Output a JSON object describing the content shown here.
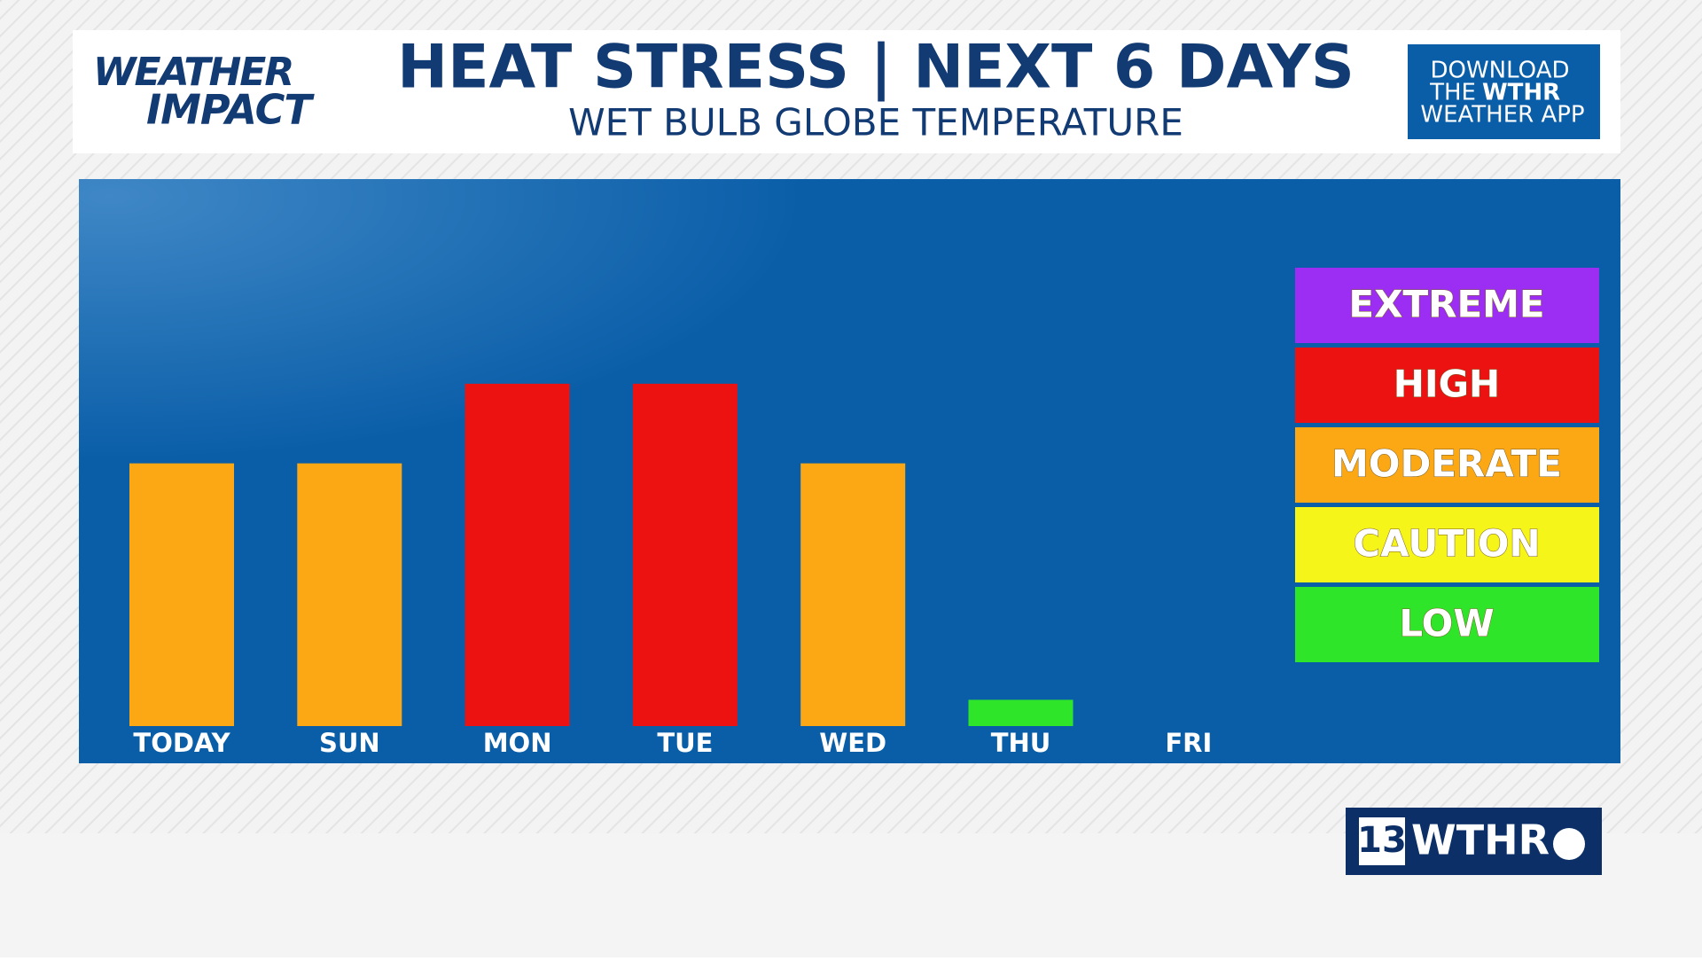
{
  "chart_data": {
    "type": "bar",
    "title": "HEAT STRESS | NEXT 6 DAYS",
    "subtitle": "WET BULB GLOBE TEMPERATURE",
    "categories": [
      "TODAY",
      "SUN",
      "MON",
      "TUE",
      "WED",
      "THU",
      "FRI"
    ],
    "values": [
      3.3,
      3.3,
      4.3,
      4.3,
      3.3,
      0.33,
      0
    ],
    "colors": [
      "#fca814",
      "#fca814",
      "#ec1212",
      "#ec1212",
      "#fca814",
      "#2ee52a",
      "#2ee52a"
    ],
    "ylim": [
      0,
      5
    ],
    "legend": [
      {
        "name": "EXTREME",
        "color": "#9b2ef2"
      },
      {
        "name": "HIGH",
        "color": "#ec1212"
      },
      {
        "name": "MODERATE",
        "color": "#fca814"
      },
      {
        "name": "CAUTION",
        "color": "#f6f51a"
      },
      {
        "name": "LOW",
        "color": "#2ee52a"
      }
    ]
  },
  "branding": {
    "logo_top": "WEATHER",
    "logo_bottom": "IMPACT",
    "app_line1": "DOWNLOAD",
    "app_line2a": "THE",
    "app_line2b": "WTHR",
    "app_line3": "WEATHER APP",
    "station_number": "13",
    "station_name": "WTHR"
  }
}
